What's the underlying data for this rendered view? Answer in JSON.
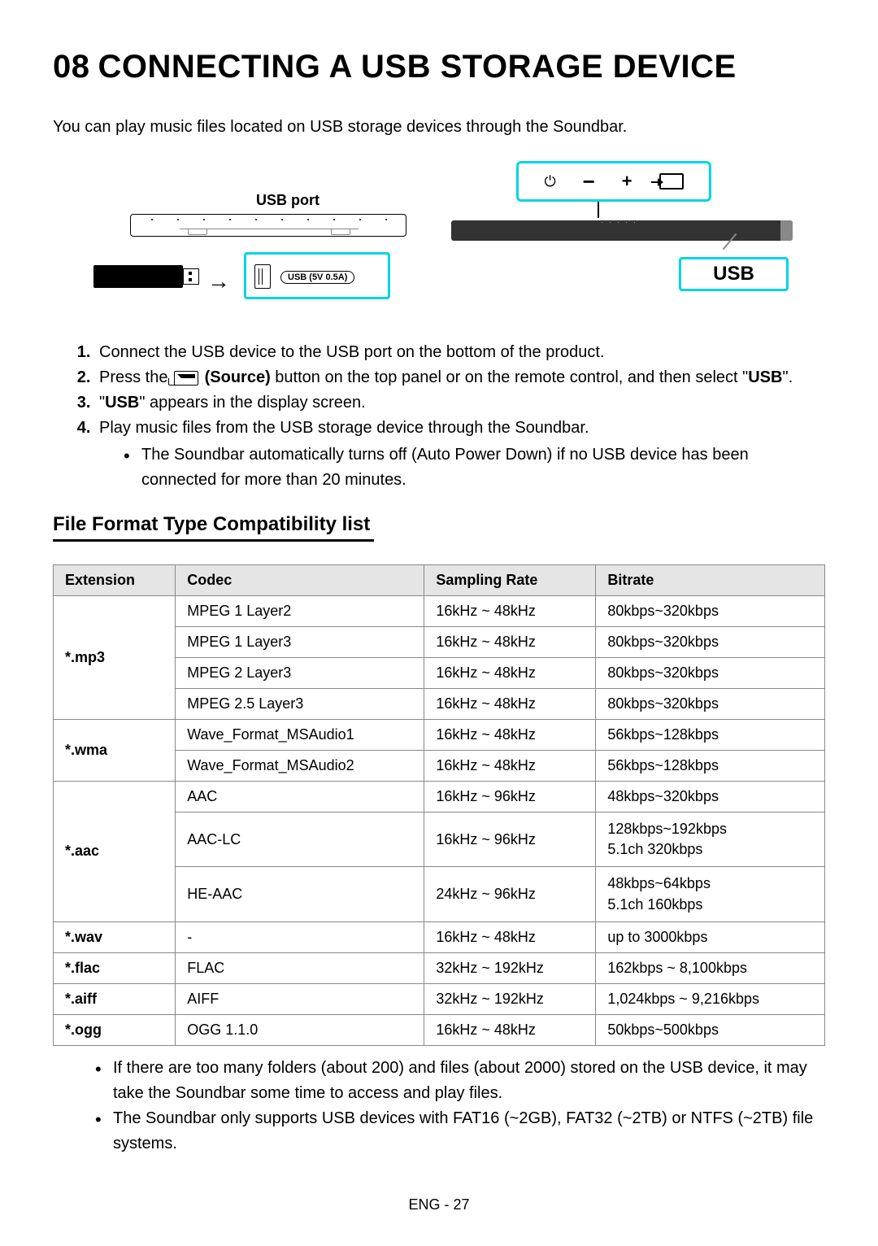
{
  "title_num": "08",
  "title_text": "CONNECTING A USB STORAGE DEVICE",
  "intro": "You can play music files located on USB storage devices through the Soundbar.",
  "diagram": {
    "usb_port_label": "USB port",
    "usb_5v_label": "USB (5V 0.5A)",
    "usb_display": "USB"
  },
  "steps": [
    "Connect the USB device to the USB port on the bottom of the product.",
    "__STEP2__",
    "\"USB\" appears in the display screen.",
    "Play music files from the USB storage device through the Soundbar."
  ],
  "step2_a": "Press the ",
  "step2_source": " (Source)",
  "step2_b": " button on the top panel or on the remote control, and then select \"",
  "step2_usb": "USB",
  "step2_c": "\".",
  "step3_prefix": "\"",
  "step3_usb": "USB",
  "step3_suffix": "\" appears in the display screen.",
  "sub_bullet": "The Soundbar automatically turns off (Auto Power Down) if no USB device has been connected for more than 20 minutes.",
  "subheading": "File Format Type Compatibility list",
  "table": {
    "headers": [
      "Extension",
      "Codec",
      "Sampling Rate",
      "Bitrate"
    ],
    "groups": [
      {
        "ext": "*.mp3",
        "rows": [
          {
            "codec": "MPEG 1 Layer2",
            "sr": "16kHz ~ 48kHz",
            "br": "80kbps~320kbps"
          },
          {
            "codec": "MPEG 1 Layer3",
            "sr": "16kHz ~ 48kHz",
            "br": "80kbps~320kbps"
          },
          {
            "codec": "MPEG 2 Layer3",
            "sr": "16kHz ~ 48kHz",
            "br": "80kbps~320kbps"
          },
          {
            "codec": "MPEG 2.5 Layer3",
            "sr": "16kHz ~ 48kHz",
            "br": "80kbps~320kbps"
          }
        ]
      },
      {
        "ext": "*.wma",
        "rows": [
          {
            "codec": "Wave_Format_MSAudio1",
            "sr": "16kHz ~ 48kHz",
            "br": "56kbps~128kbps"
          },
          {
            "codec": "Wave_Format_MSAudio2",
            "sr": "16kHz ~ 48kHz",
            "br": "56kbps~128kbps"
          }
        ]
      },
      {
        "ext": "*.aac",
        "rows": [
          {
            "codec": "AAC",
            "sr": "16kHz ~ 96kHz",
            "br": "48kbps~320kbps"
          },
          {
            "codec": "AAC-LC",
            "sr": "16kHz ~ 96kHz",
            "br": "128kbps~192kbps\n5.1ch 320kbps"
          },
          {
            "codec": "HE-AAC",
            "sr": "24kHz ~ 96kHz",
            "br": "48kbps~64kbps\n5.1ch 160kbps"
          }
        ]
      },
      {
        "ext": "*.wav",
        "rows": [
          {
            "codec": "-",
            "sr": "16kHz ~ 48kHz",
            "br": "up to 3000kbps"
          }
        ]
      },
      {
        "ext": "*.flac",
        "rows": [
          {
            "codec": "FLAC",
            "sr": "32kHz ~ 192kHz",
            "br": "162kbps ~ 8,100kbps"
          }
        ]
      },
      {
        "ext": "*.aiff",
        "rows": [
          {
            "codec": "AIFF",
            "sr": "32kHz ~ 192kHz",
            "br": "1,024kbps ~ 9,216kbps"
          }
        ]
      },
      {
        "ext": "*.ogg",
        "rows": [
          {
            "codec": "OGG 1.1.0",
            "sr": "16kHz ~ 48kHz",
            "br": "50kbps~500kbps"
          }
        ]
      }
    ]
  },
  "notes": [
    "If there are too many folders (about 200) and files (about 2000) stored on the USB device, it may take the Soundbar some time to access and play files.",
    "The Soundbar only supports USB devices with FAT16 (~2GB), FAT32 (~2TB) or NTFS (~2TB) file systems."
  ],
  "footer": "ENG - 27",
  "colors": {
    "highlight": "#00d4e6",
    "header_bg": "#e5e5e5",
    "border": "#888888"
  }
}
